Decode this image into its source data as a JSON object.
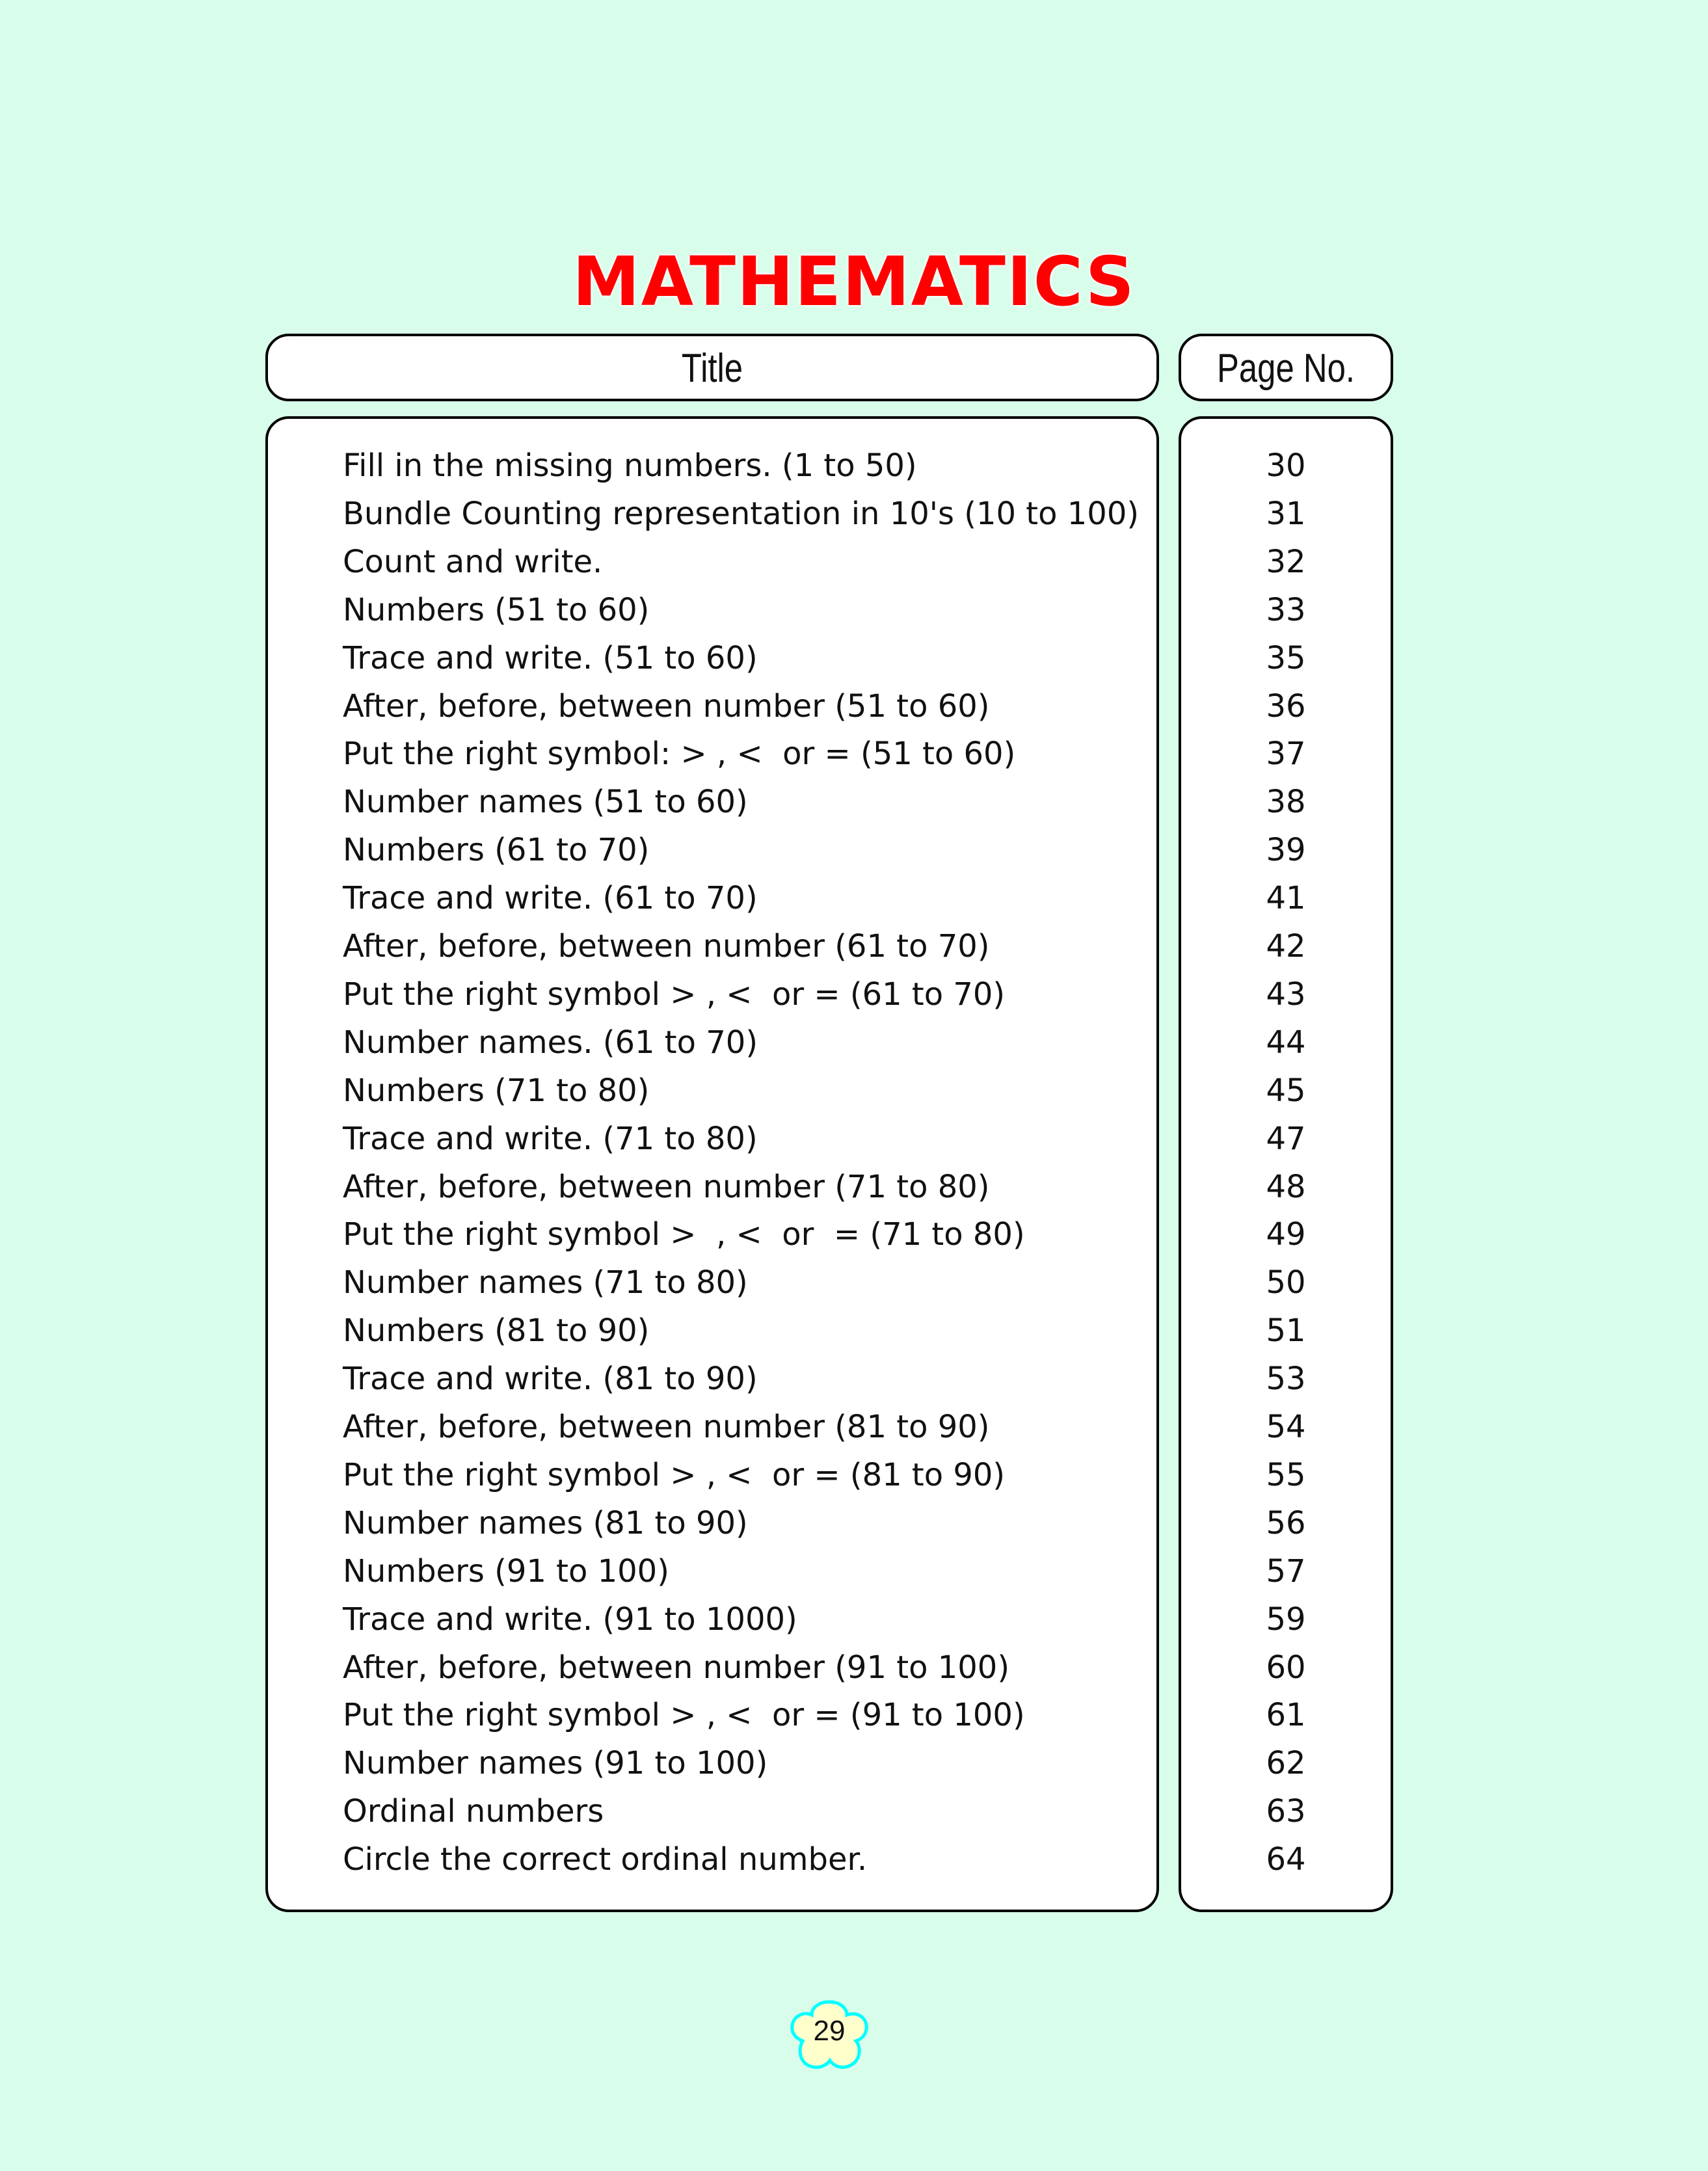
{
  "heading": "MATHEMATICS",
  "columns": {
    "title": "Title",
    "page": "Page No."
  },
  "entries": [
    {
      "title": "Fill in the missing numbers. (1 to 50)",
      "page": "30"
    },
    {
      "title": "Bundle Counting representation in 10's (10 to 100)",
      "page": "31"
    },
    {
      "title": "Count and write.",
      "page": "32"
    },
    {
      "title": "Numbers (51 to 60)",
      "page": "33"
    },
    {
      "title": "Trace and write. (51 to 60)",
      "page": "35"
    },
    {
      "title": "After, before, between number (51 to 60)",
      "page": "36"
    },
    {
      "title": "Put the right symbol: > , <  or = (51 to 60)",
      "page": "37"
    },
    {
      "title": "Number names (51 to 60)",
      "page": "38"
    },
    {
      "title": "Numbers (61 to 70)",
      "page": "39"
    },
    {
      "title": "Trace and write. (61 to 70)",
      "page": "41"
    },
    {
      "title": "After, before, between number (61 to 70)",
      "page": "42"
    },
    {
      "title": "Put the right symbol > , <  or = (61 to 70)",
      "page": "43"
    },
    {
      "title": "Number names. (61 to 70)",
      "page": "44"
    },
    {
      "title": "Numbers (71 to 80)",
      "page": "45"
    },
    {
      "title": "Trace and write. (71 to 80)",
      "page": "47"
    },
    {
      "title": "After, before, between number (71 to 80)",
      "page": "48"
    },
    {
      "title": "Put the right symbol >  , <  or  = (71 to 80)",
      "page": "49"
    },
    {
      "title": "Number names (71 to 80)",
      "page": "50"
    },
    {
      "title": "Numbers (81 to 90)",
      "page": "51"
    },
    {
      "title": "Trace and write. (81 to 90)",
      "page": "53"
    },
    {
      "title": "After, before, between number (81 to 90)",
      "page": "54"
    },
    {
      "title": "Put the right symbol > , <  or = (81 to 90)",
      "page": "55"
    },
    {
      "title": "Number names (81 to 90)",
      "page": "56"
    },
    {
      "title": "Numbers (91 to 100)",
      "page": "57"
    },
    {
      "title": "Trace and write. (91 to 1000)",
      "page": "59"
    },
    {
      "title": "After, before, between number (91 to 100)",
      "page": "60"
    },
    {
      "title": "Put the right symbol > , <  or = (91 to 100)",
      "page": "61"
    },
    {
      "title": "Number names (91 to 100)",
      "page": "62"
    },
    {
      "title": "Ordinal numbers",
      "page": "63"
    },
    {
      "title": "Circle the correct ordinal number.",
      "page": "64"
    }
  ],
  "page_number": "29",
  "colors": {
    "background": "#d9fdeb",
    "heading": "#ff0000",
    "flower_fill": "#ffffcc",
    "flower_border": "#00ffff"
  }
}
